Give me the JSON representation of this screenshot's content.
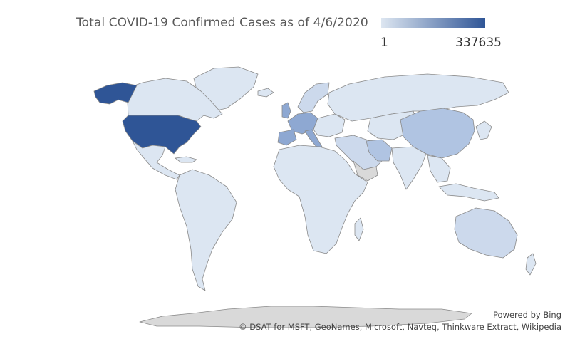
{
  "map": {
    "title": "Total COVID-19 Confirmed Cases as of 4/6/2020",
    "legend": {
      "min_label": "1",
      "max_label": "337635",
      "color_low": "#dde6f1",
      "color_high": "#2f5596"
    },
    "colors": {
      "no_data": "#d9d9d9",
      "very_low": "#dce6f2",
      "low": "#ccd9ec",
      "medium_low": "#b0c4e2",
      "medium": "#8ea8d2",
      "high": "#2f5596",
      "border": "#8a8a8a"
    },
    "attribution": {
      "powered_by": "Powered by Bing",
      "sources": "© DSAT for MSFT, GeoNames, Microsoft, Navteq, Thinkware Extract, Wikipedia"
    }
  }
}
